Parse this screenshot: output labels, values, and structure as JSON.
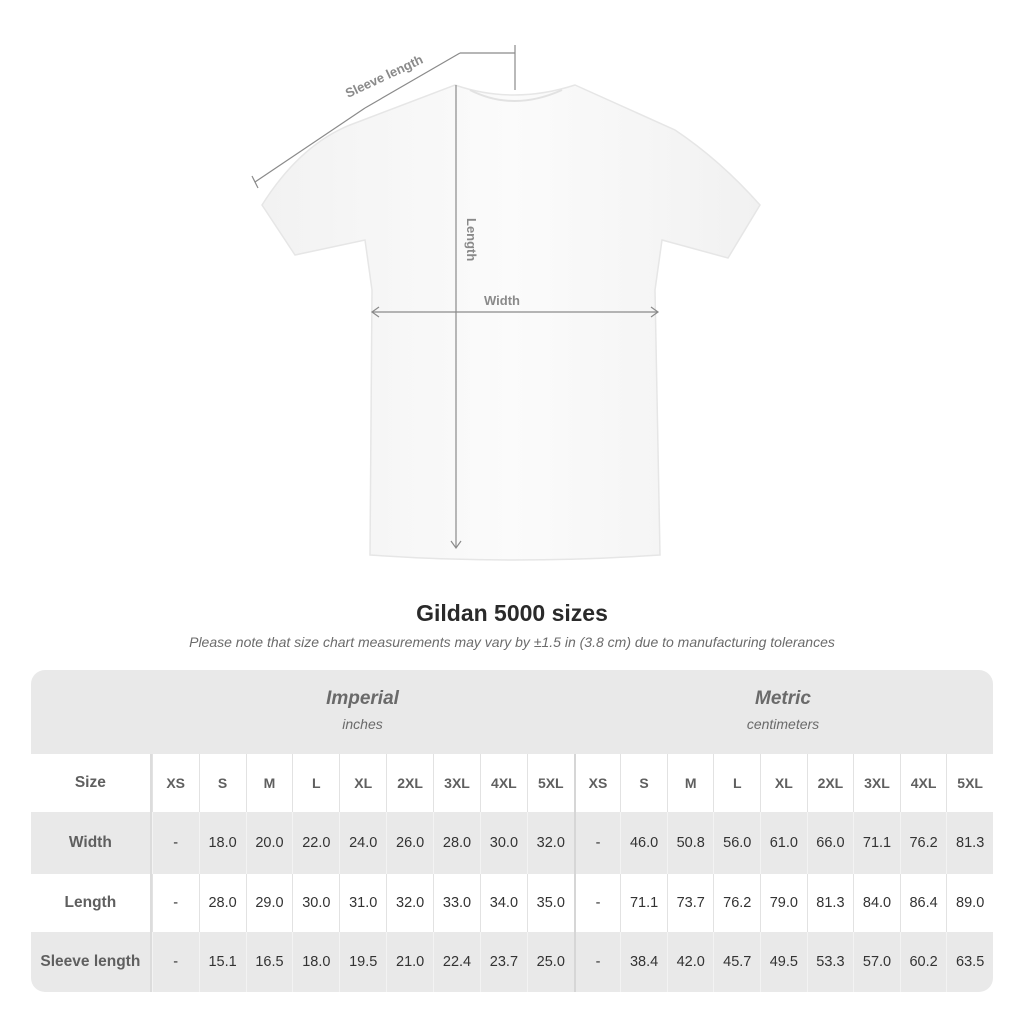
{
  "diagram": {
    "sleeve_label": "Sleeve length",
    "length_label": "Length",
    "width_label": "Width"
  },
  "title": "Gildan 5000 sizes",
  "note": "Please note that size chart measurements may vary by ±1.5 in (3.8 cm) due to manufacturing tolerances",
  "imperial": {
    "title": "Imperial",
    "unit": "inches"
  },
  "metric": {
    "title": "Metric",
    "unit": "centimeters"
  },
  "size_label": "Size",
  "sizes": [
    "XS",
    "S",
    "M",
    "L",
    "XL",
    "2XL",
    "3XL",
    "4XL",
    "5XL"
  ],
  "rows": [
    {
      "label": "Width",
      "imperial": [
        "-",
        "18.0",
        "20.0",
        "22.0",
        "24.0",
        "26.0",
        "28.0",
        "30.0",
        "32.0"
      ],
      "metric": [
        "-",
        "46.0",
        "50.8",
        "56.0",
        "61.0",
        "66.0",
        "71.1",
        "76.2",
        "81.3"
      ]
    },
    {
      "label": "Length",
      "imperial": [
        "-",
        "28.0",
        "29.0",
        "30.0",
        "31.0",
        "32.0",
        "33.0",
        "34.0",
        "35.0"
      ],
      "metric": [
        "-",
        "71.1",
        "73.7",
        "76.2",
        "79.0",
        "81.3",
        "84.0",
        "86.4",
        "89.0"
      ]
    },
    {
      "label": "Sleeve length",
      "imperial": [
        "-",
        "15.1",
        "16.5",
        "18.0",
        "19.5",
        "21.0",
        "22.4",
        "23.7",
        "25.0"
      ],
      "metric": [
        "-",
        "38.4",
        "42.0",
        "45.7",
        "49.5",
        "53.3",
        "57.0",
        "60.2",
        "63.5"
      ]
    }
  ],
  "colors": {
    "header_bg": "#e9e9e9",
    "text": "#333333",
    "measure_line": "#8a8a8a"
  }
}
